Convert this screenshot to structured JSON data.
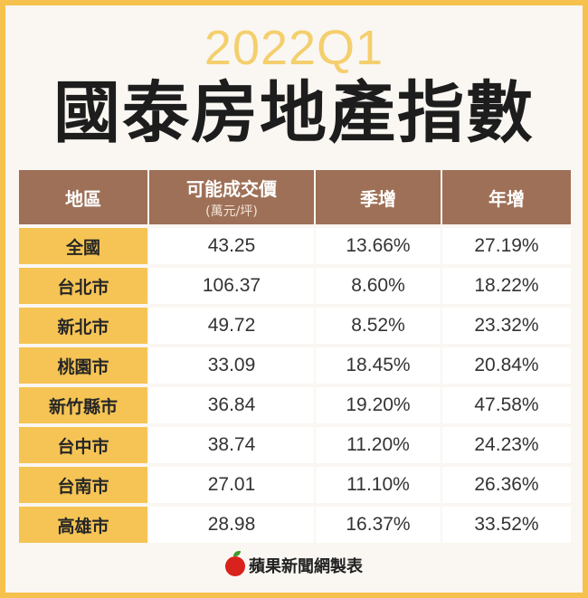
{
  "header": {
    "year": "2022Q1",
    "title": "國泰房地產指數"
  },
  "table": {
    "headers": [
      {
        "label": "地區",
        "sub": ""
      },
      {
        "label": "可能成交價",
        "sub": "(萬元/坪)"
      },
      {
        "label": "季增",
        "sub": ""
      },
      {
        "label": "年增",
        "sub": ""
      }
    ],
    "rows": [
      {
        "region": "全國",
        "price": "43.25",
        "qoq": "13.66%",
        "yoy": "27.19%"
      },
      {
        "region": "台北市",
        "price": "106.37",
        "qoq": "8.60%",
        "yoy": "18.22%"
      },
      {
        "region": "新北市",
        "price": "49.72",
        "qoq": "8.52%",
        "yoy": "23.32%"
      },
      {
        "region": "桃園市",
        "price": "33.09",
        "qoq": "18.45%",
        "yoy": "20.84%"
      },
      {
        "region": "新竹縣市",
        "price": "36.84",
        "qoq": "19.20%",
        "yoy": "47.58%"
      },
      {
        "region": "台中市",
        "price": "38.74",
        "qoq": "11.20%",
        "yoy": "24.23%"
      },
      {
        "region": "台南市",
        "price": "27.01",
        "qoq": "11.10%",
        "yoy": "26.36%"
      },
      {
        "region": "高雄市",
        "price": "28.98",
        "qoq": "16.37%",
        "yoy": "33.52%"
      }
    ]
  },
  "footer": {
    "credit": "蘋果新聞網製表",
    "logo_icon": "apple-icon"
  },
  "colors": {
    "frame": "#f7c14d",
    "header_bg": "#9e7057",
    "region_bg": "#f5c454",
    "year_text": "#f4cf6e"
  }
}
